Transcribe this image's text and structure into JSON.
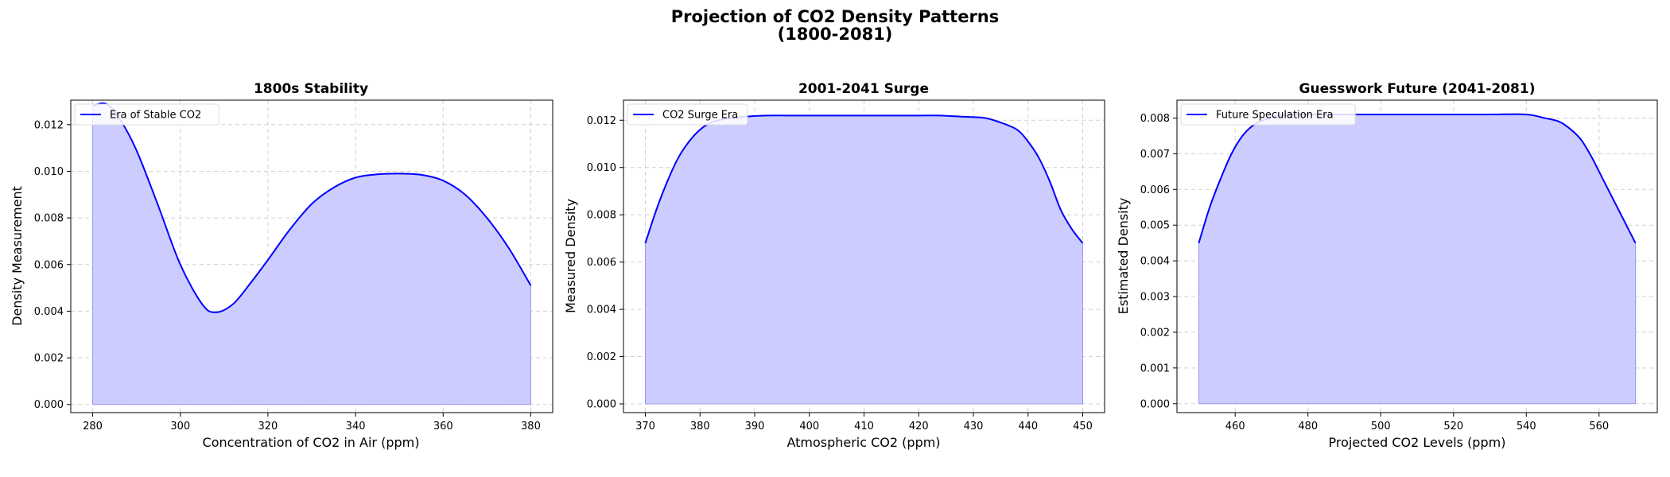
{
  "figure": {
    "title_line1": "Projection of CO2 Density Patterns",
    "title_line2": "(1800-2081)"
  },
  "colors": {
    "line": "#0000ff",
    "fill": "#ccccff",
    "grid": "#d0d0d0"
  },
  "chart_data": [
    {
      "type": "area",
      "title": "1800s Stability",
      "xlabel": "Concentration of CO2 in Air (ppm)",
      "ylabel": "Density Measurement",
      "xlim": [
        275,
        385
      ],
      "ylim": [
        -0.00035,
        0.01305
      ],
      "xticks": [
        280,
        300,
        320,
        340,
        360,
        380
      ],
      "yticks": [
        0.0,
        0.002,
        0.004,
        0.006,
        0.008,
        0.01,
        0.012
      ],
      "ytick_labels": [
        "0.000",
        "0.002",
        "0.004",
        "0.006",
        "0.008",
        "0.010",
        "0.012"
      ],
      "grid": true,
      "legend_position": "upper-left",
      "series": [
        {
          "name": "Era of Stable CO2",
          "x": [
            280,
            283,
            286,
            290,
            295,
            300,
            305,
            308,
            312,
            316,
            320,
            325,
            330,
            335,
            340,
            345,
            350,
            355,
            360,
            365,
            370,
            375,
            380
          ],
          "y": [
            0.0128,
            0.0129,
            0.0123,
            0.0109,
            0.0085,
            0.006,
            0.0043,
            0.00395,
            0.0043,
            0.0052,
            0.0062,
            0.0075,
            0.0086,
            0.0093,
            0.00973,
            0.00987,
            0.0099,
            0.00985,
            0.0096,
            0.009,
            0.008,
            0.0067,
            0.0051
          ]
        }
      ]
    },
    {
      "type": "area",
      "title": "2001-2041 Surge",
      "xlabel": "Atmospheric CO2 (ppm)",
      "ylabel": "Measured Density",
      "xlim": [
        366,
        454
      ],
      "ylim": [
        -0.00037,
        0.01285
      ],
      "xticks": [
        370,
        380,
        390,
        400,
        410,
        420,
        430,
        440,
        450
      ],
      "yticks": [
        0.0,
        0.002,
        0.004,
        0.006,
        0.008,
        0.01,
        0.012
      ],
      "ytick_labels": [
        "0.000",
        "0.002",
        "0.004",
        "0.006",
        "0.008",
        "0.010",
        "0.012"
      ],
      "grid": true,
      "legend_position": "upper-left",
      "series": [
        {
          "name": "CO2 Surge Era",
          "x": [
            370,
            372,
            374,
            376,
            378,
            380,
            382,
            385,
            388,
            392,
            396,
            400,
            410,
            420,
            424,
            428,
            432,
            435,
            438,
            440,
            442,
            444,
            446,
            448,
            450
          ],
          "y": [
            0.0068,
            0.0082,
            0.0094,
            0.0104,
            0.0111,
            0.0116,
            0.0119,
            0.01208,
            0.01215,
            0.0122,
            0.0122,
            0.0122,
            0.0122,
            0.0122,
            0.0122,
            0.01215,
            0.0121,
            0.0119,
            0.0116,
            0.0111,
            0.0104,
            0.0094,
            0.0082,
            0.0074,
            0.0068
          ]
        }
      ]
    },
    {
      "type": "area",
      "title": "Guesswork Future (2041-2081)",
      "xlabel": "Projected CO2 Levels (ppm)",
      "ylabel": "Estimated Density",
      "xlim": [
        444,
        576
      ],
      "ylim": [
        -0.00025,
        0.0085
      ],
      "xticks": [
        460,
        480,
        500,
        520,
        540,
        560
      ],
      "yticks": [
        0.0,
        0.001,
        0.002,
        0.003,
        0.004,
        0.005,
        0.006,
        0.007,
        0.008
      ],
      "ytick_labels": [
        "0.000",
        "0.001",
        "0.002",
        "0.003",
        "0.004",
        "0.005",
        "0.006",
        "0.007",
        "0.008"
      ],
      "grid": true,
      "legend_position": "upper-left",
      "series": [
        {
          "name": "Future Speculation Era",
          "x": [
            450,
            453,
            456,
            459,
            462,
            465,
            468,
            471,
            475,
            480,
            490,
            500,
            510,
            520,
            530,
            540,
            545,
            549,
            552,
            555,
            558,
            561,
            564,
            567,
            570
          ],
          "y": [
            0.0045,
            0.0055,
            0.0063,
            0.007,
            0.0075,
            0.0078,
            0.00795,
            0.00805,
            0.0081,
            0.0081,
            0.0081,
            0.0081,
            0.0081,
            0.0081,
            0.0081,
            0.0081,
            0.008,
            0.0079,
            0.0077,
            0.0074,
            0.0069,
            0.0063,
            0.0057,
            0.0051,
            0.0045
          ]
        }
      ]
    }
  ]
}
